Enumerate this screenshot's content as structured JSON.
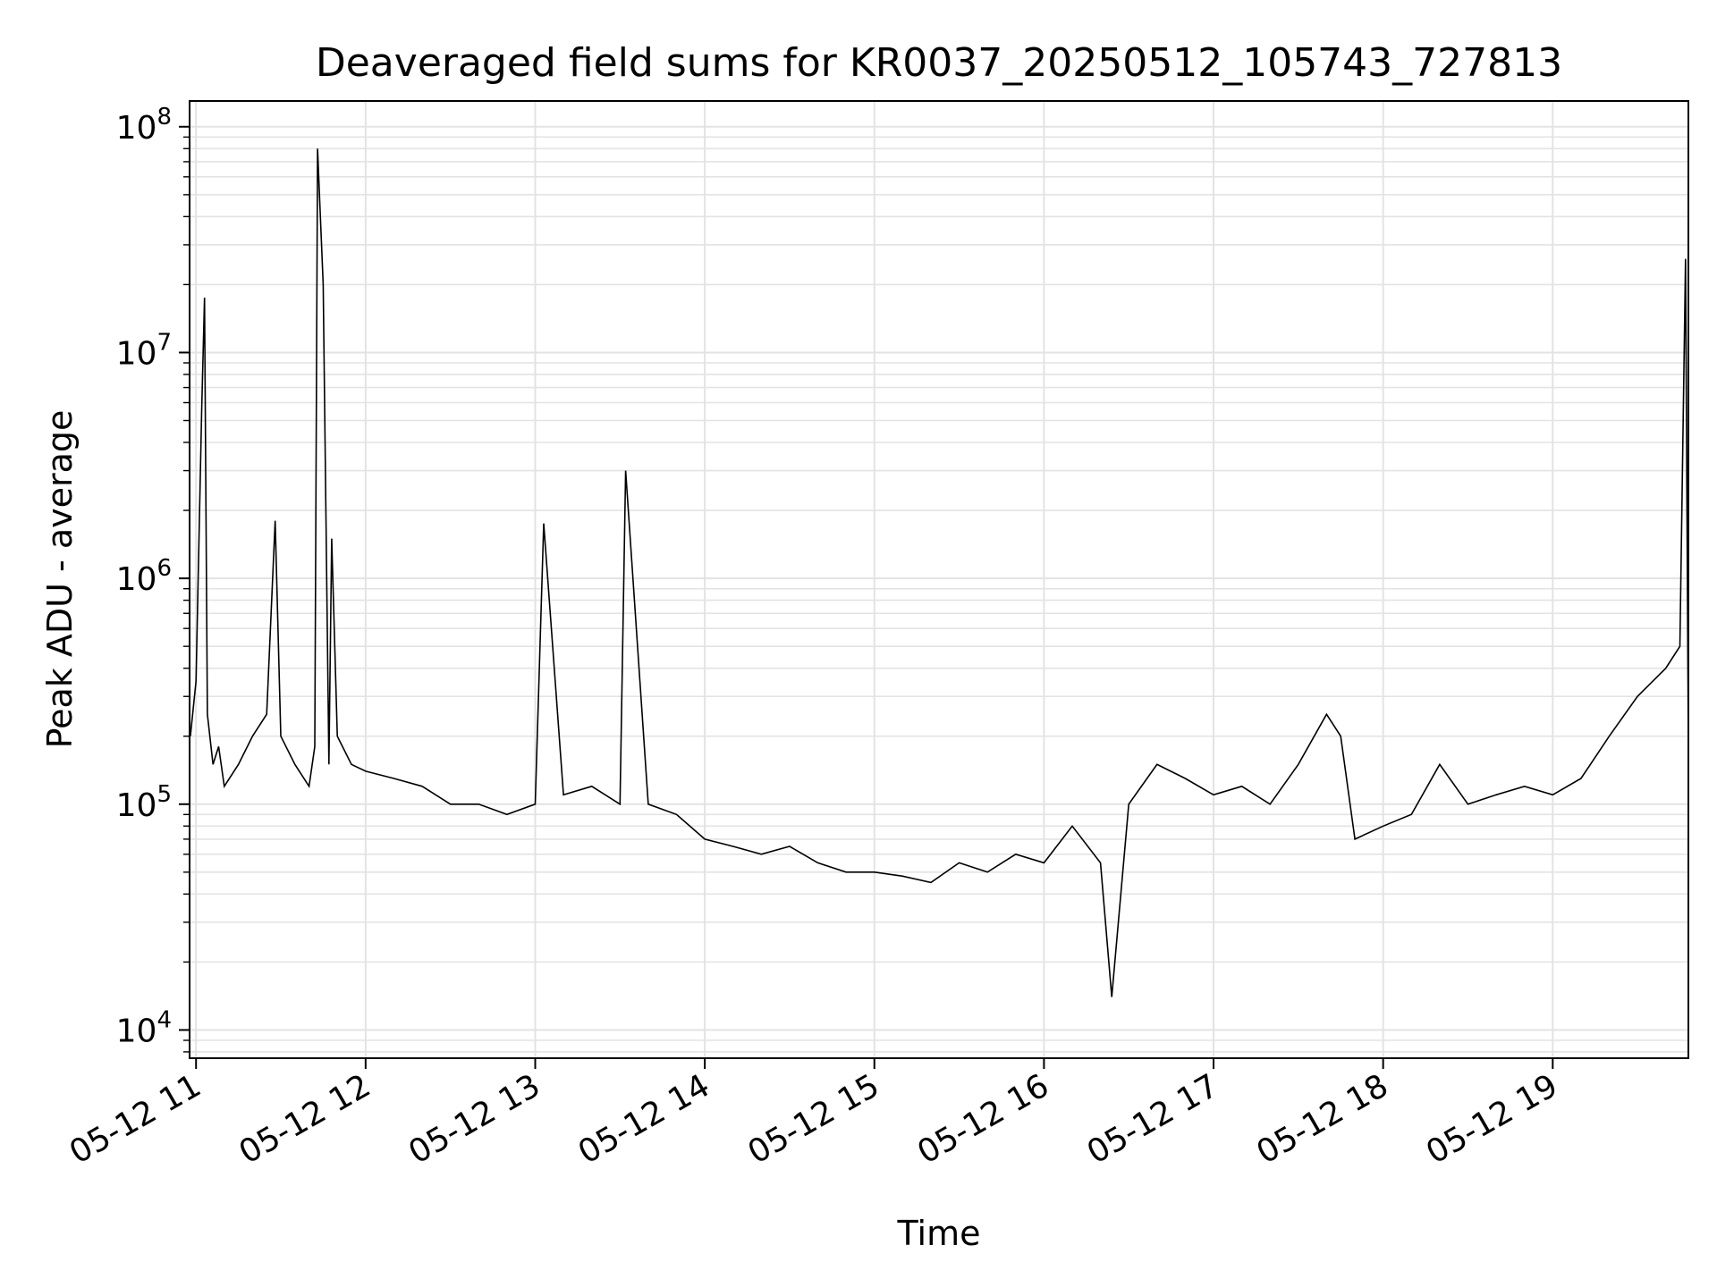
{
  "chart_data": {
    "type": "line",
    "title": "Deaveraged field sums for KR0037_20250512_105743_727813",
    "xlabel": "Time",
    "ylabel": "Peak ADU - average",
    "y_scale": "log",
    "ylim": [
      7500,
      130000000
    ],
    "xlim": [
      "2025-05-12 10:57:43",
      "2025-05-12 19:48:00"
    ],
    "grid": true,
    "series_color": "#000000",
    "x_ticks": [
      {
        "t": "2025-05-12 11:00",
        "label": "05-12 11"
      },
      {
        "t": "2025-05-12 12:00",
        "label": "05-12 12"
      },
      {
        "t": "2025-05-12 13:00",
        "label": "05-12 13"
      },
      {
        "t": "2025-05-12 14:00",
        "label": "05-12 14"
      },
      {
        "t": "2025-05-12 15:00",
        "label": "05-12 15"
      },
      {
        "t": "2025-05-12 16:00",
        "label": "05-12 16"
      },
      {
        "t": "2025-05-12 17:00",
        "label": "05-12 17"
      },
      {
        "t": "2025-05-12 18:00",
        "label": "05-12 18"
      },
      {
        "t": "2025-05-12 19:00",
        "label": "05-12 19"
      }
    ],
    "y_ticks": [
      {
        "value": 10000,
        "base": "10",
        "exp": "4"
      },
      {
        "value": 100000,
        "base": "10",
        "exp": "5"
      },
      {
        "value": 1000000,
        "base": "10",
        "exp": "6"
      },
      {
        "value": 10000000,
        "base": "10",
        "exp": "7"
      },
      {
        "value": 100000000,
        "base": "10",
        "exp": "8"
      }
    ],
    "series": [
      {
        "x": [
          "2025-05-12 10:58",
          "2025-05-12 11:00",
          "2025-05-12 11:02",
          "2025-05-12 11:03",
          "2025-05-12 11:04",
          "2025-05-12 11:06",
          "2025-05-12 11:08",
          "2025-05-12 11:10",
          "2025-05-12 11:15",
          "2025-05-12 11:20",
          "2025-05-12 11:25",
          "2025-05-12 11:28",
          "2025-05-12 11:30",
          "2025-05-12 11:35",
          "2025-05-12 11:40",
          "2025-05-12 11:42",
          "2025-05-12 11:43",
          "2025-05-12 11:45",
          "2025-05-12 11:47",
          "2025-05-12 11:48",
          "2025-05-12 11:50",
          "2025-05-12 11:55",
          "2025-05-12 12:00",
          "2025-05-12 12:10",
          "2025-05-12 12:20",
          "2025-05-12 12:30",
          "2025-05-12 12:40",
          "2025-05-12 12:50",
          "2025-05-12 13:00",
          "2025-05-12 13:03",
          "2025-05-12 13:10",
          "2025-05-12 13:20",
          "2025-05-12 13:30",
          "2025-05-12 13:32",
          "2025-05-12 13:40",
          "2025-05-12 13:50",
          "2025-05-12 14:00",
          "2025-05-12 14:10",
          "2025-05-12 14:20",
          "2025-05-12 14:30",
          "2025-05-12 14:40",
          "2025-05-12 14:50",
          "2025-05-12 15:00",
          "2025-05-12 15:10",
          "2025-05-12 15:20",
          "2025-05-12 15:30",
          "2025-05-12 15:40",
          "2025-05-12 15:50",
          "2025-05-12 16:00",
          "2025-05-12 16:10",
          "2025-05-12 16:20",
          "2025-05-12 16:24",
          "2025-05-12 16:30",
          "2025-05-12 16:40",
          "2025-05-12 16:50",
          "2025-05-12 17:00",
          "2025-05-12 17:10",
          "2025-05-12 17:20",
          "2025-05-12 17:30",
          "2025-05-12 17:40",
          "2025-05-12 17:45",
          "2025-05-12 17:50",
          "2025-05-12 18:00",
          "2025-05-12 18:10",
          "2025-05-12 18:20",
          "2025-05-12 18:30",
          "2025-05-12 18:40",
          "2025-05-12 18:50",
          "2025-05-12 19:00",
          "2025-05-12 19:10",
          "2025-05-12 19:20",
          "2025-05-12 19:30",
          "2025-05-12 19:40",
          "2025-05-12 19:45",
          "2025-05-12 19:47",
          "2025-05-12 19:48"
        ],
        "y": [
          200000,
          350000,
          5500000,
          17500000,
          250000,
          150000,
          180000,
          120000,
          150000,
          200000,
          250000,
          1800000,
          200000,
          150000,
          120000,
          180000,
          80000000,
          20000000,
          150000,
          1500000,
          200000,
          150000,
          140000,
          130000,
          120000,
          100000,
          100000,
          90000,
          100000,
          1750000,
          110000,
          120000,
          100000,
          3000000,
          100000,
          90000,
          70000,
          65000,
          60000,
          65000,
          55000,
          50000,
          50000,
          48000,
          45000,
          55000,
          50000,
          60000,
          55000,
          80000,
          55000,
          14000,
          100000,
          150000,
          130000,
          110000,
          120000,
          100000,
          150000,
          250000,
          200000,
          70000,
          80000,
          90000,
          150000,
          100000,
          110000,
          120000,
          110000,
          130000,
          200000,
          300000,
          400000,
          500000,
          26000000,
          170000
        ]
      }
    ]
  }
}
